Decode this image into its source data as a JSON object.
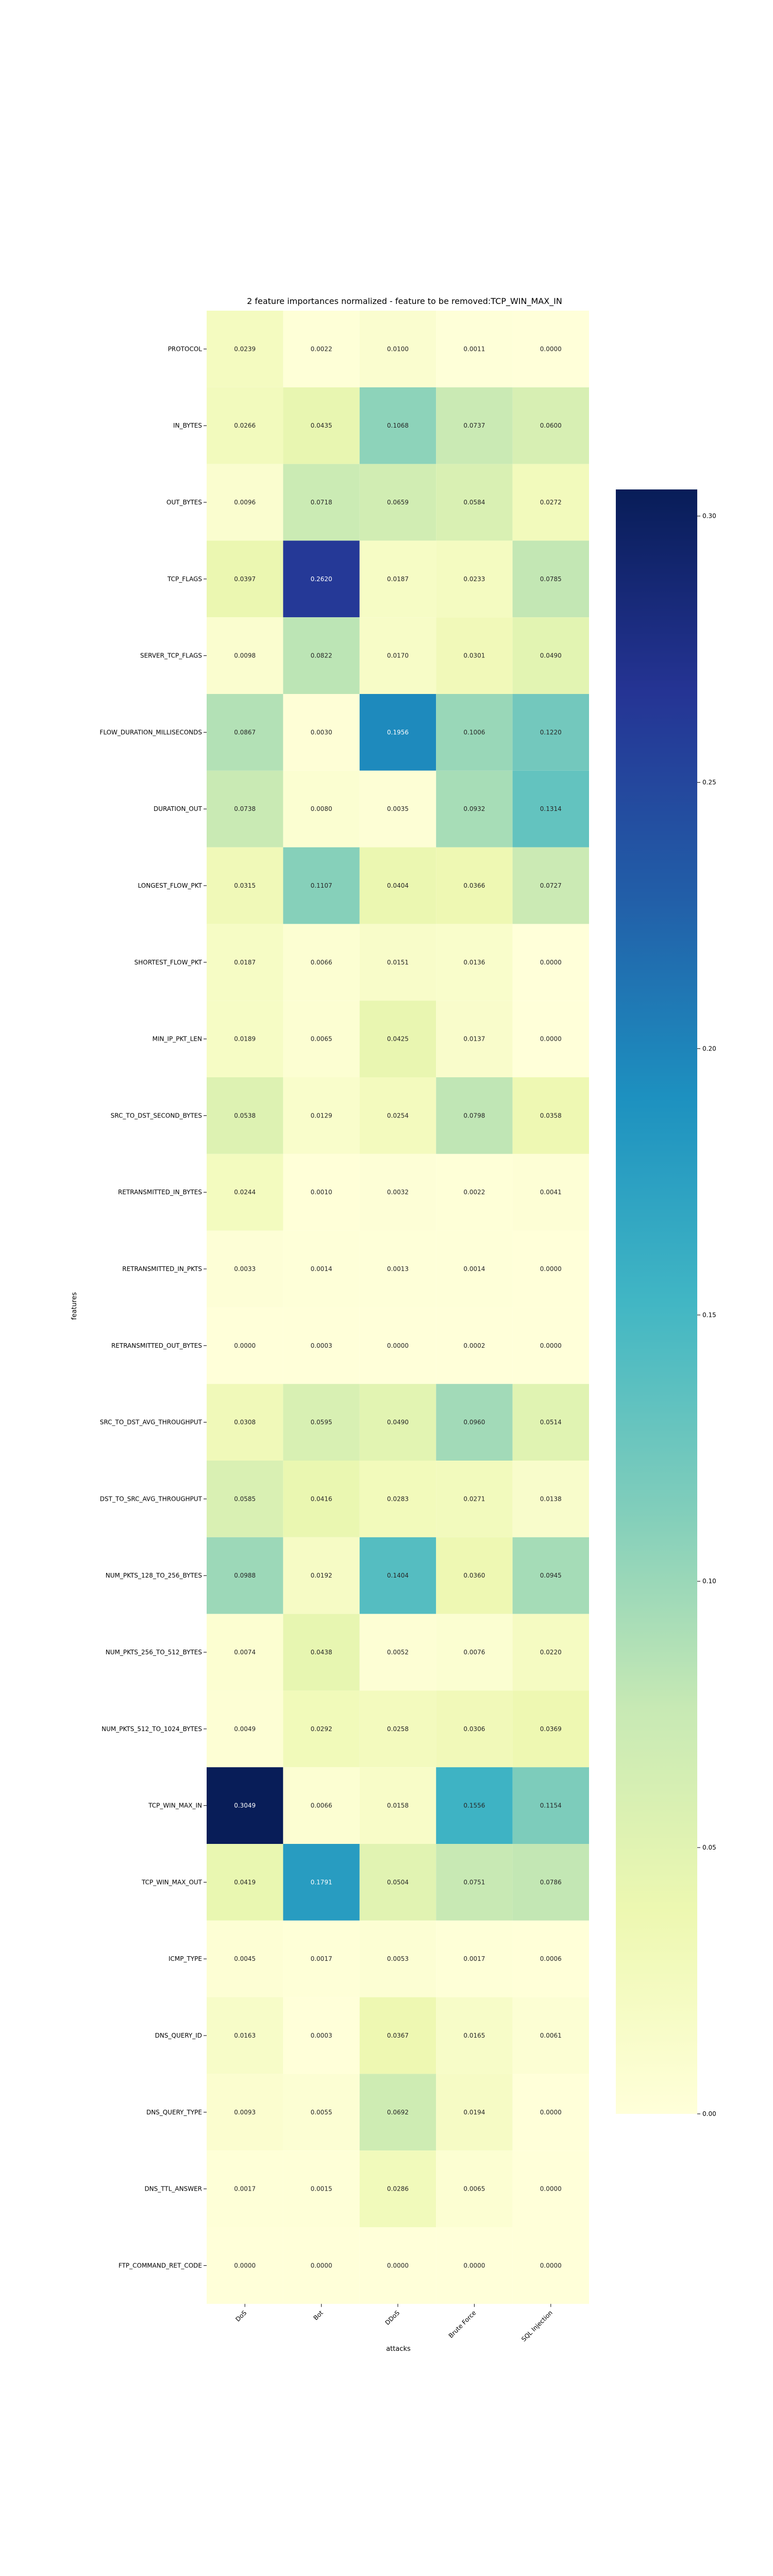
{
  "chart_data": {
    "type": "heatmap",
    "title": "2 feature importances normalized - feature to be removed:TCP_WIN_MAX_IN",
    "xlabel": "attacks",
    "ylabel": "features",
    "columns": [
      "DoS",
      "Bot",
      "DDoS",
      "Brute Force",
      "SQL Injection"
    ],
    "rows": [
      "PROTOCOL",
      "IN_BYTES",
      "OUT_BYTES",
      "TCP_FLAGS",
      "SERVER_TCP_FLAGS",
      "FLOW_DURATION_MILLISECONDS",
      "DURATION_OUT",
      "LONGEST_FLOW_PKT",
      "SHORTEST_FLOW_PKT",
      "MIN_IP_PKT_LEN",
      "SRC_TO_DST_SECOND_BYTES",
      "RETRANSMITTED_IN_BYTES",
      "RETRANSMITTED_IN_PKTS",
      "RETRANSMITTED_OUT_BYTES",
      "SRC_TO_DST_AVG_THROUGHPUT",
      "DST_TO_SRC_AVG_THROUGHPUT",
      "NUM_PKTS_128_TO_256_BYTES",
      "NUM_PKTS_256_TO_512_BYTES",
      "NUM_PKTS_512_TO_1024_BYTES",
      "TCP_WIN_MAX_IN",
      "TCP_WIN_MAX_OUT",
      "ICMP_TYPE",
      "DNS_QUERY_ID",
      "DNS_QUERY_TYPE",
      "DNS_TTL_ANSWER",
      "FTP_COMMAND_RET_CODE"
    ],
    "values": [
      [
        "0.0239",
        "0.0022",
        "0.0100",
        "0.0011",
        "0.0000"
      ],
      [
        "0.0266",
        "0.0435",
        "0.1068",
        "0.0737",
        "0.0600"
      ],
      [
        "0.0096",
        "0.0718",
        "0.0659",
        "0.0584",
        "0.0272"
      ],
      [
        "0.0397",
        "0.2620",
        "0.0187",
        "0.0233",
        "0.0785"
      ],
      [
        "0.0098",
        "0.0822",
        "0.0170",
        "0.0301",
        "0.0490"
      ],
      [
        "0.0867",
        "0.0030",
        "0.1956",
        "0.1006",
        "0.1220"
      ],
      [
        "0.0738",
        "0.0080",
        "0.0035",
        "0.0932",
        "0.1314"
      ],
      [
        "0.0315",
        "0.1107",
        "0.0404",
        "0.0366",
        "0.0727"
      ],
      [
        "0.0187",
        "0.0066",
        "0.0151",
        "0.0136",
        "0.0000"
      ],
      [
        "0.0189",
        "0.0065",
        "0.0425",
        "0.0137",
        "0.0000"
      ],
      [
        "0.0538",
        "0.0129",
        "0.0254",
        "0.0798",
        "0.0358"
      ],
      [
        "0.0244",
        "0.0010",
        "0.0032",
        "0.0022",
        "0.0041"
      ],
      [
        "0.0033",
        "0.0014",
        "0.0013",
        "0.0014",
        "0.0000"
      ],
      [
        "0.0000",
        "0.0003",
        "0.0000",
        "0.0002",
        "0.0000"
      ],
      [
        "0.0308",
        "0.0595",
        "0.0490",
        "0.0960",
        "0.0514"
      ],
      [
        "0.0585",
        "0.0416",
        "0.0283",
        "0.0271",
        "0.0138"
      ],
      [
        "0.0988",
        "0.0192",
        "0.1404",
        "0.0360",
        "0.0945"
      ],
      [
        "0.0074",
        "0.0438",
        "0.0052",
        "0.0076",
        "0.0220"
      ],
      [
        "0.0049",
        "0.0292",
        "0.0258",
        "0.0306",
        "0.0369"
      ],
      [
        "0.3049",
        "0.0066",
        "0.0158",
        "0.1556",
        "0.1154"
      ],
      [
        "0.0419",
        "0.1791",
        "0.0504",
        "0.0751",
        "0.0786"
      ],
      [
        "0.0045",
        "0.0017",
        "0.0053",
        "0.0017",
        "0.0006"
      ],
      [
        "0.0163",
        "0.0003",
        "0.0367",
        "0.0165",
        "0.0061"
      ],
      [
        "0.0093",
        "0.0055",
        "0.0692",
        "0.0194",
        "0.0000"
      ],
      [
        "0.0017",
        "0.0015",
        "0.0286",
        "0.0065",
        "0.0000"
      ],
      [
        "0.0000",
        "0.0000",
        "0.0000",
        "0.0000",
        "0.0000"
      ]
    ],
    "colorbar": {
      "colormap": "YlGnBu",
      "range": [
        0.0,
        0.305
      ],
      "ticks": [
        "0.00",
        "0.05",
        "0.10",
        "0.15",
        "0.20",
        "0.25",
        "0.30"
      ]
    },
    "grid": false,
    "colormap_stops": [
      "#ffffd9",
      "#edf8b1",
      "#c7e9b4",
      "#7fcdbb",
      "#41b6c4",
      "#1d91c0",
      "#225ea8",
      "#253494",
      "#081d58"
    ]
  }
}
